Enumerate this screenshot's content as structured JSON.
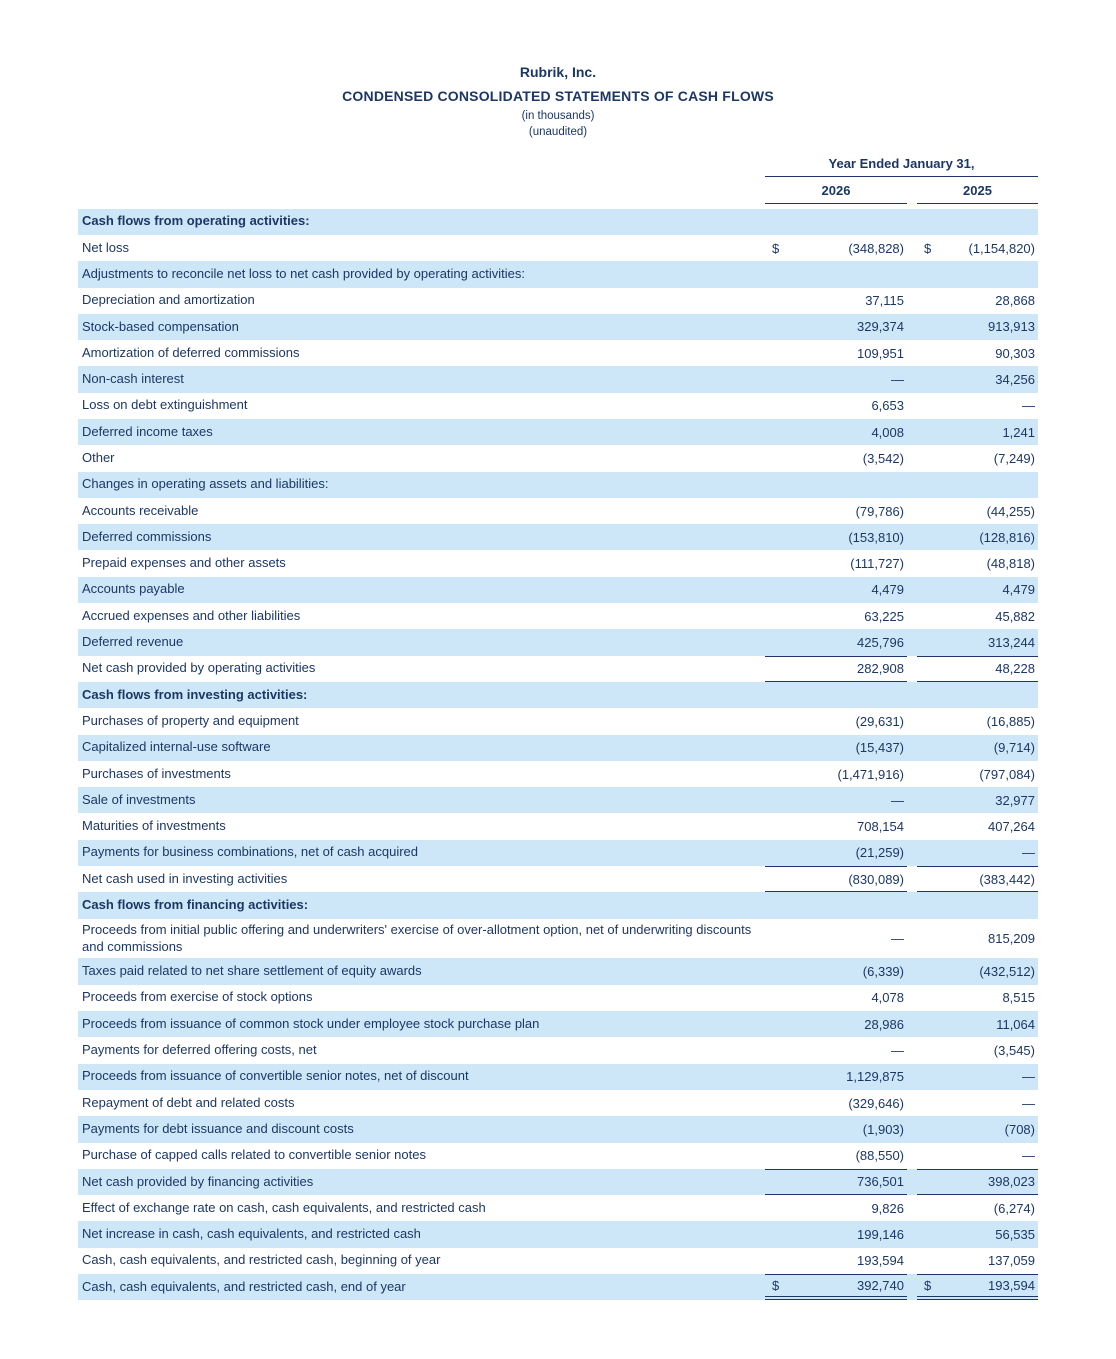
{
  "header": {
    "company": "Rubrik, Inc.",
    "title": "CONDENSED CONSOLIDATED STATEMENTS OF CASH FLOWS",
    "subtitle1": "(in thousands)",
    "subtitle2": "(unaudited)"
  },
  "colors": {
    "text_navy": "#1c3766",
    "row_highlight": "#cde7f8"
  },
  "table": {
    "period_header": "Year Ended January 31,",
    "columns": [
      "2026",
      "2025"
    ],
    "currency_symbol": "$",
    "rows": [
      {
        "label": "Cash flows from operating activities:",
        "v1": "",
        "v2": "",
        "shade": true,
        "bold": true
      },
      {
        "label": "Net loss",
        "v1": "(348,828)",
        "v2": "(1,154,820)",
        "dollar": true
      },
      {
        "label": "Adjustments to reconcile net loss to net cash provided by operating activities:",
        "v1": "",
        "v2": "",
        "shade": true
      },
      {
        "label": "Depreciation and amortization",
        "v1": "37,115",
        "v2": "28,868"
      },
      {
        "label": "Stock-based compensation",
        "v1": "329,374",
        "v2": "913,913",
        "shade": true
      },
      {
        "label": "Amortization of deferred commissions",
        "v1": "109,951",
        "v2": "90,303"
      },
      {
        "label": "Non-cash interest",
        "v1": "—",
        "v2": "34,256",
        "shade": true
      },
      {
        "label": "Loss on debt extinguishment",
        "v1": "6,653",
        "v2": "—"
      },
      {
        "label": "Deferred income taxes",
        "v1": "4,008",
        "v2": "1,241",
        "shade": true
      },
      {
        "label": "Other",
        "v1": "(3,542)",
        "v2": "(7,249)"
      },
      {
        "label": "Changes in operating assets and liabilities:",
        "v1": "",
        "v2": "",
        "shade": true
      },
      {
        "label": "Accounts receivable",
        "v1": "(79,786)",
        "v2": "(44,255)"
      },
      {
        "label": "Deferred commissions",
        "v1": "(153,810)",
        "v2": "(128,816)",
        "shade": true
      },
      {
        "label": "Prepaid expenses and other assets",
        "v1": "(111,727)",
        "v2": "(48,818)"
      },
      {
        "label": "Accounts payable",
        "v1": "4,479",
        "v2": "4,479",
        "shade": true
      },
      {
        "label": "Accrued expenses and other liabilities",
        "v1": "63,225",
        "v2": "45,882"
      },
      {
        "label": "Deferred revenue",
        "v1": "425,796",
        "v2": "313,244",
        "shade": true
      },
      {
        "label": "Net cash provided by operating activities",
        "v1": "282,908",
        "v2": "48,228",
        "lineTop": true,
        "lineBottom": true
      },
      {
        "label": "Cash flows from investing activities:",
        "v1": "",
        "v2": "",
        "shade": true,
        "bold": true
      },
      {
        "label": "Purchases of property and equipment",
        "v1": "(29,631)",
        "v2": "(16,885)"
      },
      {
        "label": "Capitalized internal-use software",
        "v1": "(15,437)",
        "v2": "(9,714)",
        "shade": true
      },
      {
        "label": "Purchases of investments",
        "v1": "(1,471,916)",
        "v2": "(797,084)"
      },
      {
        "label": "Sale of investments",
        "v1": "—",
        "v2": "32,977",
        "shade": true
      },
      {
        "label": "Maturities of investments",
        "v1": "708,154",
        "v2": "407,264"
      },
      {
        "label": "Payments for business combinations, net of cash acquired",
        "v1": "(21,259)",
        "v2": "—",
        "shade": true
      },
      {
        "label": "Net cash used in investing activities",
        "v1": "(830,089)",
        "v2": "(383,442)",
        "lineTop": true,
        "lineBottom": true
      },
      {
        "label": "Cash flows from financing activities:",
        "v1": "",
        "v2": "",
        "shade": true,
        "bold": true
      },
      {
        "label": "Proceeds from initial public offering and underwriters' exercise of over-allotment option, net of underwriting discounts and commissions",
        "v1": "—",
        "v2": "815,209"
      },
      {
        "label": "Taxes paid related to net share settlement of equity awards",
        "v1": "(6,339)",
        "v2": "(432,512)",
        "shade": true
      },
      {
        "label": "Proceeds from exercise of stock options",
        "v1": "4,078",
        "v2": "8,515"
      },
      {
        "label": "Proceeds from issuance of common stock under employee stock purchase plan",
        "v1": "28,986",
        "v2": "11,064",
        "shade": true
      },
      {
        "label": "Payments for deferred offering costs, net",
        "v1": "—",
        "v2": "(3,545)"
      },
      {
        "label": "Proceeds from issuance of convertible senior notes, net of discount",
        "v1": "1,129,875",
        "v2": "—",
        "shade": true
      },
      {
        "label": "Repayment of debt and related costs",
        "v1": "(329,646)",
        "v2": "—"
      },
      {
        "label": "Payments for debt issuance and discount costs",
        "v1": "(1,903)",
        "v2": "(708)",
        "shade": true
      },
      {
        "label": "Purchase of capped calls related to convertible senior notes",
        "v1": "(88,550)",
        "v2": "—"
      },
      {
        "label": "Net cash provided by financing activities",
        "v1": "736,501",
        "v2": "398,023",
        "shade": true,
        "lineTop": true,
        "lineBottom": true
      },
      {
        "label": "Effect of exchange rate on cash, cash equivalents, and restricted cash",
        "v1": "9,826",
        "v2": "(6,274)"
      },
      {
        "label": "Net increase in cash, cash equivalents, and restricted cash",
        "v1": "199,146",
        "v2": "56,535",
        "shade": true
      },
      {
        "label": "Cash, cash equivalents, and restricted cash, beginning of year",
        "v1": "193,594",
        "v2": "137,059"
      },
      {
        "label": "Cash, cash equivalents, and restricted cash, end of year",
        "v1": "392,740",
        "v2": "193,594",
        "shade": true,
        "dollar": true,
        "lineTop": true,
        "lineDouble": true
      }
    ]
  }
}
